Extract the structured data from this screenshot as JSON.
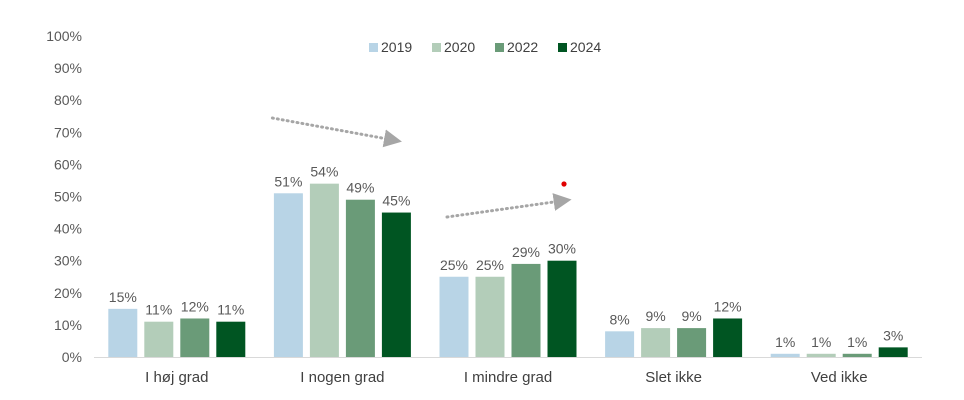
{
  "chart_data": {
    "type": "bar",
    "categories": [
      "I høj grad",
      "I nogen grad",
      "I mindre grad",
      "Slet ikke",
      "Ved ikke"
    ],
    "series": [
      {
        "name": "2019",
        "values": [
          15,
          51,
          25,
          8,
          1
        ],
        "color": "#b8d4e6"
      },
      {
        "name": "2020",
        "values": [
          11,
          54,
          25,
          9,
          1
        ],
        "color": "#b3cdb9"
      },
      {
        "name": "2022",
        "values": [
          12,
          49,
          29,
          9,
          1
        ],
        "color": "#6a9b78"
      },
      {
        "name": "2024",
        "values": [
          11,
          45,
          30,
          12,
          3
        ],
        "color": "#005522"
      }
    ],
    "value_suffix": "%",
    "yticks": [
      "0%",
      "10%",
      "20%",
      "30%",
      "40%",
      "50%",
      "60%",
      "70%",
      "80%",
      "90%",
      "100%"
    ],
    "ylim": [
      0,
      100
    ],
    "grid": false,
    "legend": "top-center",
    "annotations": [
      {
        "type": "dotted-arrow",
        "direction": "down",
        "color": "#a6a6a6",
        "from_category": "I høj grad",
        "to_category": "I nogen grad"
      },
      {
        "type": "dotted-arrow",
        "direction": "up",
        "color": "#a6a6a6",
        "from_category": "I mindre grad",
        "to_category": "I mindre grad"
      },
      {
        "type": "dot",
        "color": "#e00000"
      }
    ]
  }
}
